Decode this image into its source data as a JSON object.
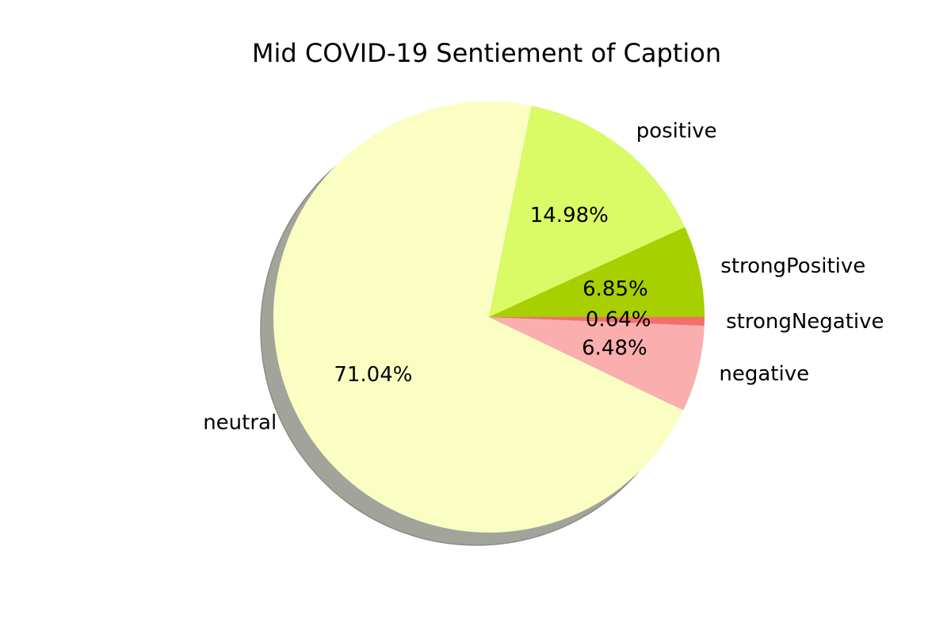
{
  "chart_data": {
    "type": "pie",
    "title": "Mid COVID-19 Sentiement of Caption",
    "shadow": true,
    "start_angle_deg": 0,
    "direction": "counterclockwise",
    "slices": [
      {
        "label": "strongPositive",
        "value": 6.85,
        "pct_label": "6.85%",
        "color": "#a8cf00"
      },
      {
        "label": "positive",
        "value": 14.98,
        "pct_label": "14.98%",
        "color": "#dafa66"
      },
      {
        "label": "neutral",
        "value": 71.04,
        "pct_label": "71.04%",
        "color": "#fafec2"
      },
      {
        "label": "negative",
        "value": 6.48,
        "pct_label": "6.48%",
        "color": "#faaeae"
      },
      {
        "label": "strongNegative",
        "value": 0.64,
        "pct_label": "0.64%",
        "color": "#f56e6e"
      }
    ]
  }
}
